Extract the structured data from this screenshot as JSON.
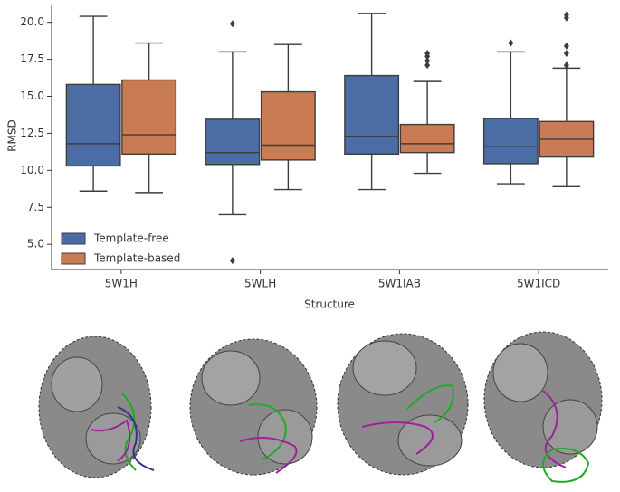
{
  "chart_data": {
    "type": "box",
    "x_label": "Structure",
    "y_label": "RMSD",
    "categories": [
      "5W1H",
      "5WLH",
      "5W1IAB",
      "5W1ICD"
    ],
    "ylim": [
      3.3,
      21.2
    ],
    "yticks": [
      {
        "value": 5,
        "label": "5.0"
      },
      7.5,
      {
        "value": 10,
        "label": "10.0"
      },
      12.5,
      {
        "value": 15,
        "label": "15.0"
      },
      17.5,
      {
        "value": 20,
        "label": "20.0"
      }
    ],
    "legend": "lower left",
    "series": [
      {
        "name": "Template-free",
        "color": "#4c6ca6",
        "boxes": [
          {
            "whislo": 8.6,
            "q1": 10.3,
            "med": 11.8,
            "q3": 15.8,
            "whishi": 20.4,
            "fliers": []
          },
          {
            "whislo": 7.0,
            "q1": 10.4,
            "med": 11.2,
            "q3": 13.45,
            "whishi": 18.0,
            "fliers": [
              19.9,
              3.9
            ]
          },
          {
            "whislo": 8.7,
            "q1": 11.1,
            "med": 12.3,
            "q3": 16.4,
            "whishi": 20.6,
            "fliers": []
          },
          {
            "whislo": 9.1,
            "q1": 10.45,
            "med": 11.6,
            "q3": 13.5,
            "whishi": 18.0,
            "fliers": [
              18.6
            ]
          }
        ]
      },
      {
        "name": "Template-based",
        "color": "#c97c54",
        "boxes": [
          {
            "whislo": 8.5,
            "q1": 11.1,
            "med": 12.4,
            "q3": 16.1,
            "whishi": 18.6,
            "fliers": []
          },
          {
            "whislo": 8.7,
            "q1": 10.7,
            "med": 11.7,
            "q3": 15.3,
            "whishi": 18.5,
            "fliers": []
          },
          {
            "whislo": 9.8,
            "q1": 11.2,
            "med": 11.8,
            "q3": 13.1,
            "whishi": 16.0,
            "fliers": [
              17.9,
              17.7,
              17.4,
              17.1
            ]
          },
          {
            "whislo": 8.9,
            "q1": 10.9,
            "med": 12.1,
            "q3": 13.3,
            "whishi": 16.9,
            "fliers": [
              20.5,
              20.3,
              18.4,
              17.9,
              17.1
            ]
          }
        ]
      }
    ]
  }
}
